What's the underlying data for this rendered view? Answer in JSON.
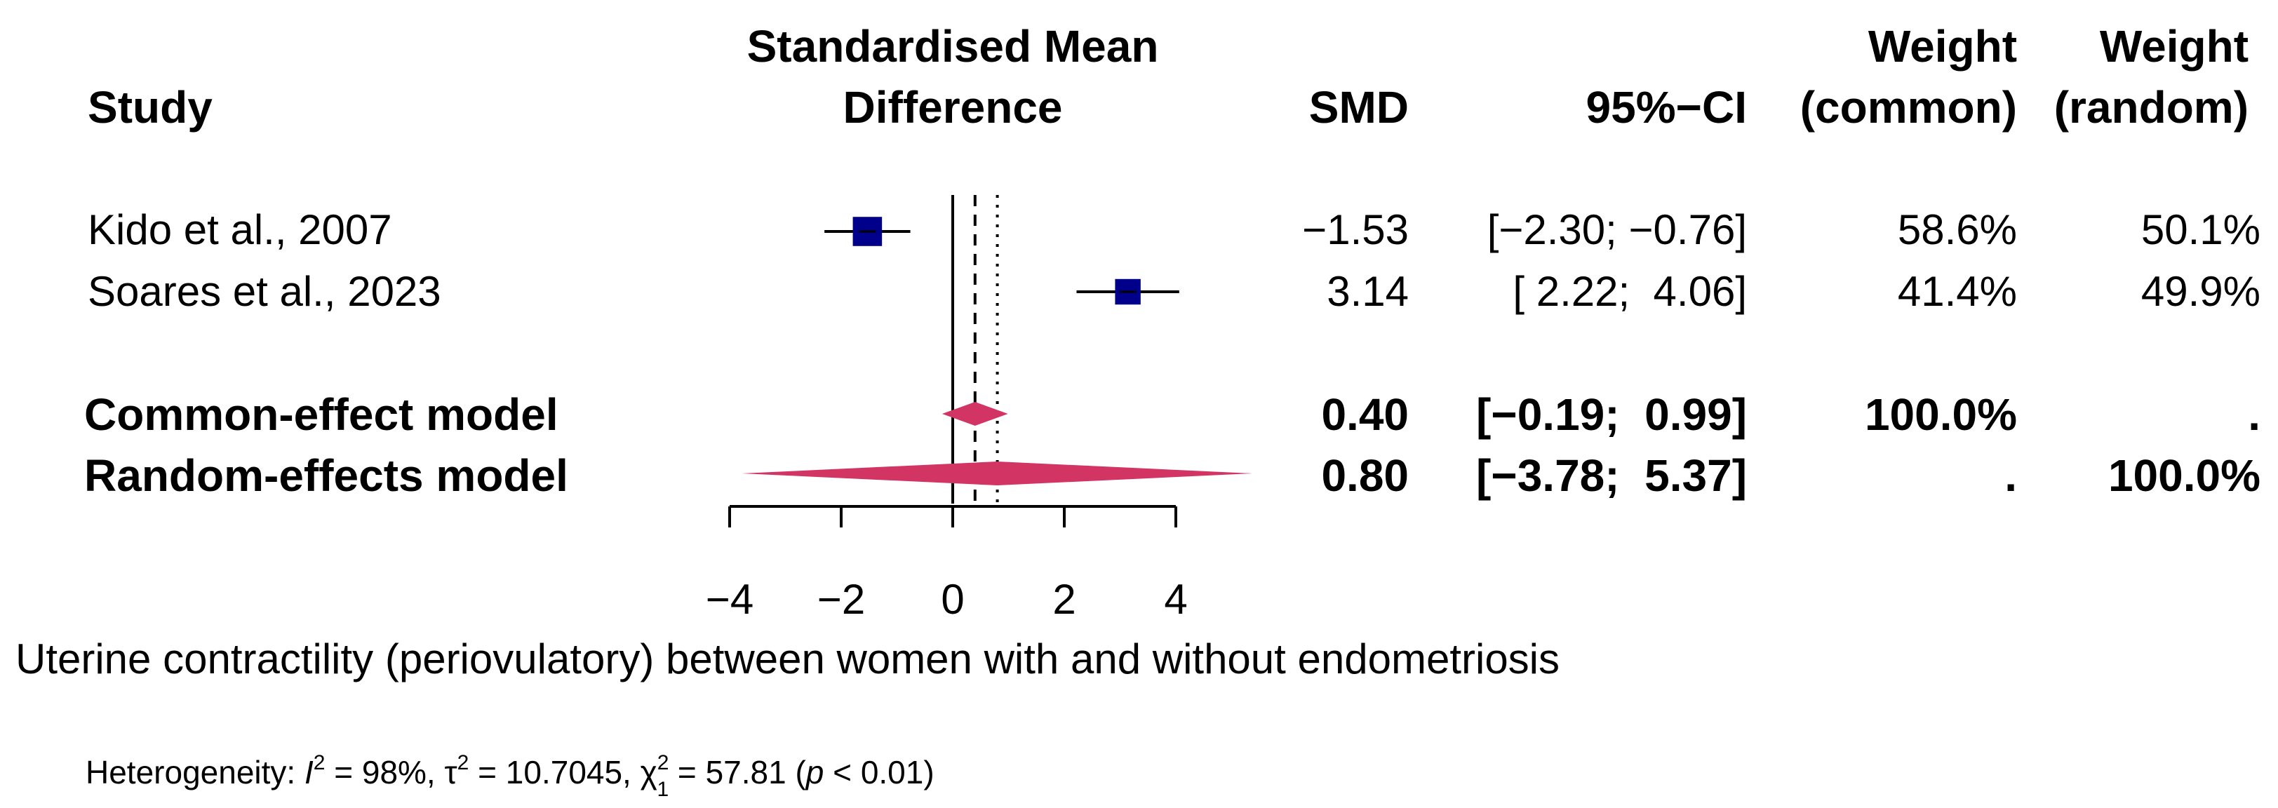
{
  "headers": {
    "study": "Study",
    "smd_title_line1": "Standardised Mean",
    "smd_title_line2": "Difference",
    "smd": "SMD",
    "ci": "95%−CI",
    "weight_common_1": "Weight",
    "weight_common_2": "(common)",
    "weight_random_1": "Weight",
    "weight_random_2": "(random)"
  },
  "studies": [
    {
      "name": "Kido et al., 2007",
      "smd": "−1.53",
      "ci": "[−2.30; −0.76]",
      "w_common": "58.6%",
      "w_random": "50.1%"
    },
    {
      "name": "Soares et al., 2023",
      "smd": "3.14",
      "ci": "[ 2.22;  4.06]",
      "w_common": "41.4%",
      "w_random": "49.9%"
    }
  ],
  "models": [
    {
      "name": "Common-effect model",
      "smd": "0.40",
      "ci": "[−0.19;  0.99]",
      "w_common": "100.0%",
      "w_random": "."
    },
    {
      "name": "Random-effects model",
      "smd": "0.80",
      "ci": "[−3.78;  5.37]",
      "w_common": ".",
      "w_random": "100.0%"
    }
  ],
  "axis_ticks": [
    "−4",
    "−2",
    "0",
    "2",
    "4"
  ],
  "xlabel": "Uterine contractility (periovulatory) between women with and without endometriosis",
  "heterogeneity": {
    "prefix": "Heterogeneity: ",
    "i2_symbol": "I",
    "i2_value": " = 98%, ",
    "tau_symbol": "τ",
    "tau_value": " = 10.7045, ",
    "chi_symbol": "χ",
    "chi_value": " = 57.81 (",
    "p_symbol": "p",
    "p_value": " < 0.01)",
    "sup2": "2",
    "sub1": "1"
  },
  "colors": {
    "study_box": "#00008B",
    "diamond": "#D23564",
    "line": "#000000"
  },
  "chart_data": {
    "type": "forest",
    "title": "Standardised Mean Difference",
    "xlabel": "Uterine contractility (periovulatory) between women with and without endometriosis",
    "xlim": [
      -4,
      4
    ],
    "xticks": [
      -4,
      -2,
      0,
      2,
      4
    ],
    "null_value": 0,
    "studies": [
      {
        "name": "Kido et al., 2007",
        "smd": -1.53,
        "lower": -2.3,
        "upper": -0.76,
        "weight_common": 58.6,
        "weight_random": 50.1
      },
      {
        "name": "Soares et al., 2023",
        "smd": 3.14,
        "lower": 2.22,
        "upper": 4.06,
        "weight_common": 41.4,
        "weight_random": 49.9
      }
    ],
    "pooled": [
      {
        "model": "common",
        "name": "Common-effect model",
        "smd": 0.4,
        "lower": -0.19,
        "upper": 0.99
      },
      {
        "model": "random",
        "name": "Random-effects model",
        "smd": 0.8,
        "lower": -3.78,
        "upper": 5.37
      }
    ],
    "heterogeneity": {
      "I2_percent": 98,
      "tau2": 10.7045,
      "chi2": 57.81,
      "df": 1,
      "p": "< 0.01"
    }
  }
}
